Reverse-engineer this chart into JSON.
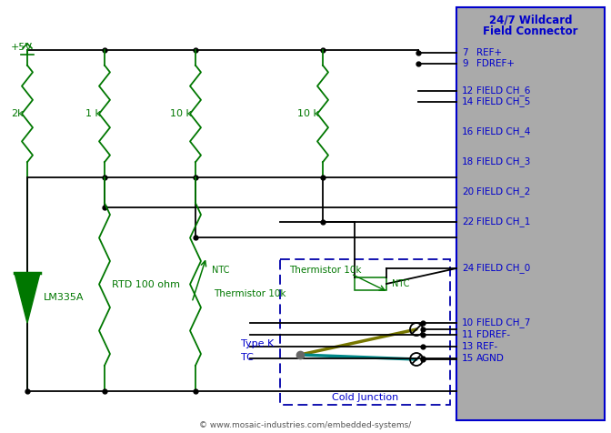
{
  "bg_color": "#ffffff",
  "wire_color": "#000000",
  "green_color": "#007700",
  "blue_text_color": "#0000cc",
  "connector_bg": "#aaaaaa",
  "connector_border": "#0000cc",
  "connector_title_color": "#0000cc",
  "dashed_box_color": "#0000aa",
  "teal_color": "#008888",
  "olive_color": "#777700",
  "copyright_text": "© www.mosaic-industries.com/embedded-systems/",
  "title_line1": "24/7 Wildcard",
  "title_line2": "Field Connector"
}
